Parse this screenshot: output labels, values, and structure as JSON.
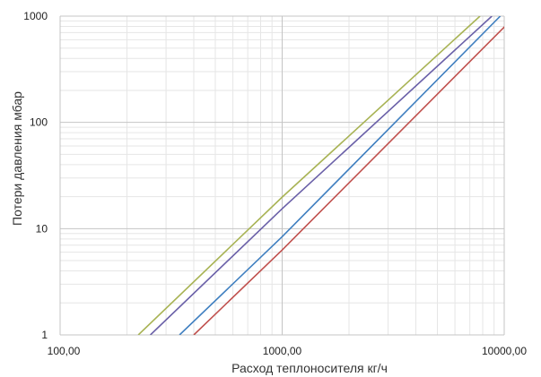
{
  "chart_data": {
    "type": "line",
    "title": "",
    "xlabel": "Расход теплоносителя кг/ч",
    "ylabel": "Потери давления мбар",
    "x_scale": "log",
    "y_scale": "log",
    "xlim": [
      100,
      10000
    ],
    "ylim": [
      1,
      1000
    ],
    "x_ticks": [
      100,
      1000,
      10000
    ],
    "x_tick_labels": [
      "100,00",
      "1000,00",
      "10000,00"
    ],
    "y_ticks": [
      1,
      10,
      100,
      1000
    ],
    "y_tick_labels": [
      "1",
      "10",
      "100",
      "1000"
    ],
    "grid": true,
    "legend": "none",
    "series": [
      {
        "color": "#a8b354",
        "x": [
          225,
          1000,
          7780
        ],
        "y": [
          1,
          19.8,
          1000
        ]
      },
      {
        "color": "#6a60a8",
        "x": [
          255,
          1000,
          8800
        ],
        "y": [
          1,
          15.4,
          1000
        ]
      },
      {
        "color": "#3f7fc0",
        "x": [
          345,
          1000,
          9600
        ],
        "y": [
          1,
          8.4,
          1000
        ]
      },
      {
        "color": "#c0504d",
        "x": [
          400,
          1000,
          11200
        ],
        "y": [
          1,
          6.3,
          1000
        ]
      }
    ]
  }
}
